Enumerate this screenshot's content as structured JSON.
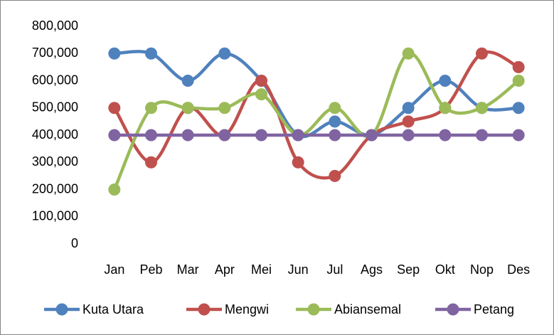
{
  "chart_data": {
    "type": "line",
    "categories": [
      "Jan",
      "Peb",
      "Mar",
      "Apr",
      "Mei",
      "Jun",
      "Jul",
      "Ags",
      "Sep",
      "Okt",
      "Nop",
      "Des"
    ],
    "series": [
      {
        "name": "Kuta Utara",
        "color": "#4f81bd",
        "values": [
          700000,
          700000,
          600000,
          700000,
          600000,
          400000,
          450000,
          400000,
          500000,
          600000,
          500000,
          500000
        ]
      },
      {
        "name": "Mengwi",
        "color": "#c0504d",
        "values": [
          500000,
          300000,
          500000,
          400000,
          600000,
          300000,
          250000,
          400000,
          450000,
          500000,
          700000,
          650000
        ]
      },
      {
        "name": "Abiansemal",
        "color": "#9bbb59",
        "values": [
          200000,
          500000,
          500000,
          500000,
          550000,
          400000,
          500000,
          400000,
          700000,
          500000,
          500000,
          600000
        ]
      },
      {
        "name": "Petang",
        "color": "#8064a2",
        "values": [
          400000,
          400000,
          400000,
          400000,
          400000,
          400000,
          400000,
          400000,
          400000,
          400000,
          400000,
          400000
        ]
      }
    ],
    "ylim": [
      0,
      800000
    ],
    "yticks": [
      0,
      {
        "value": 100000,
        "label": "100,000"
      },
      {
        "value": 200000,
        "label": "200,000"
      },
      {
        "value": 300000,
        "label": "300,000"
      },
      {
        "value": 400000,
        "label": "400,000"
      },
      {
        "value": 500000,
        "label": "500,000"
      },
      {
        "value": 600000,
        "label": "600,000"
      },
      {
        "value": 700000,
        "label": "700,000"
      },
      {
        "value": 800000,
        "label": "800,000"
      }
    ],
    "grid": false,
    "smooth": true,
    "legend": "bottom"
  }
}
